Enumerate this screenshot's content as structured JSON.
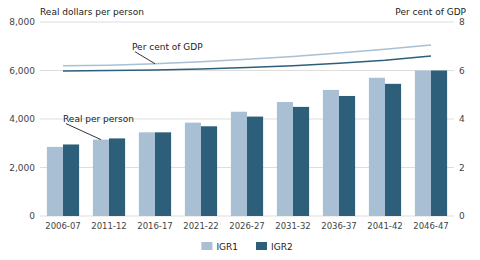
{
  "chart_data": {
    "type": "bar",
    "categories": [
      "2006-07",
      "2011-12",
      "2016-17",
      "2021-22",
      "2026-27",
      "2031-32",
      "2036-37",
      "2041-42",
      "2046-47"
    ],
    "series": [
      {
        "name": "IGR1",
        "color": "#a8bfd4",
        "values": [
          2850,
          3150,
          3450,
          3850,
          4300,
          4700,
          5200,
          5700,
          6000
        ]
      },
      {
        "name": "IGR2",
        "color": "#2d5f7a",
        "values": [
          2950,
          3200,
          3450,
          3700,
          4100,
          4500,
          4950,
          5450,
          6000
        ]
      },
      {
        "type": "line",
        "axis": "y2",
        "color": "#a8bfd4",
        "values": [
          6.2,
          6.22,
          6.28,
          6.36,
          6.46,
          6.58,
          6.72,
          6.88,
          7.05
        ]
      },
      {
        "type": "line",
        "axis": "y2",
        "color": "#2d5f7a",
        "values": [
          5.98,
          6.0,
          6.02,
          6.06,
          6.12,
          6.2,
          6.3,
          6.42,
          6.6
        ]
      }
    ],
    "y_label": "Real dollars per person",
    "y2_label": "Per cent of GDP",
    "ylim": [
      0,
      8000
    ],
    "yticks": [
      0,
      {
        "value": 2000,
        "label": "2,000"
      },
      {
        "value": 4000,
        "label": "4,000"
      },
      {
        "value": 6000,
        "label": "6,000"
      },
      {
        "value": 8000,
        "label": "8,000"
      }
    ],
    "y2lim": [
      0,
      8
    ],
    "y2ticks": [
      0,
      2,
      4,
      6,
      8
    ],
    "annotations": [
      "Per cent of GDP",
      "Real per person"
    ],
    "grid": true,
    "legend": "bottom"
  }
}
